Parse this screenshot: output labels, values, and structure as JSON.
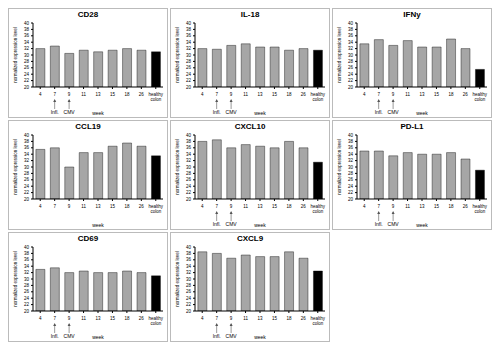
{
  "chart_data": [
    {
      "type": "bar",
      "title": "CD28",
      "categories": [
        "4",
        "7",
        "9",
        "11",
        "13",
        "15",
        "18",
        "26",
        "healthy colon"
      ],
      "values": [
        32,
        32.8,
        30.5,
        31.5,
        31,
        31.5,
        32,
        31.5,
        31
      ],
      "colors": [
        "#a6a6a6",
        "#a6a6a6",
        "#a6a6a6",
        "#a6a6a6",
        "#a6a6a6",
        "#a6a6a6",
        "#a6a6a6",
        "#a6a6a6",
        "#000000"
      ],
      "ylim": [
        20,
        40
      ],
      "yticks": [
        20,
        22,
        24,
        26,
        28,
        30,
        32,
        34,
        36,
        38,
        40
      ],
      "x_label": "week",
      "y_label": "normalized expression level",
      "annotations": [
        {
          "category": "7",
          "text": "Infl."
        },
        {
          "category": "9",
          "text": "CMV"
        }
      ]
    },
    {
      "type": "bar",
      "title": "IL-18",
      "categories": [
        "4",
        "7",
        "9",
        "11",
        "13",
        "15",
        "18",
        "26",
        "healthy colon"
      ],
      "values": [
        32,
        31.8,
        33,
        33.5,
        32.5,
        32.5,
        31.5,
        32,
        31.5
      ],
      "colors": [
        "#a6a6a6",
        "#a6a6a6",
        "#a6a6a6",
        "#a6a6a6",
        "#a6a6a6",
        "#a6a6a6",
        "#a6a6a6",
        "#a6a6a6",
        "#000000"
      ],
      "ylim": [
        20,
        40
      ],
      "yticks": [
        20,
        22,
        24,
        26,
        28,
        30,
        32,
        34,
        36,
        38,
        40
      ],
      "x_label": "week",
      "y_label": "normalized expression level",
      "annotations": [
        {
          "category": "7",
          "text": "Infl."
        },
        {
          "category": "9",
          "text": "CMV"
        }
      ]
    },
    {
      "type": "bar",
      "title": "IFNy",
      "categories": [
        "4",
        "7",
        "9",
        "11",
        "13",
        "15",
        "18",
        "26",
        "healthy colon"
      ],
      "values": [
        33.5,
        34.8,
        33,
        34.5,
        32.5,
        32.5,
        35,
        32,
        25.5
      ],
      "colors": [
        "#a6a6a6",
        "#a6a6a6",
        "#a6a6a6",
        "#a6a6a6",
        "#a6a6a6",
        "#a6a6a6",
        "#a6a6a6",
        "#a6a6a6",
        "#000000"
      ],
      "ylim": [
        20,
        40
      ],
      "yticks": [
        20,
        22,
        24,
        26,
        28,
        30,
        32,
        34,
        36,
        38,
        40
      ],
      "x_label": "week",
      "y_label": "normalized expression level",
      "annotations": [
        {
          "category": "7",
          "text": "Infl."
        },
        {
          "category": "9",
          "text": "CMV"
        }
      ]
    },
    {
      "type": "bar",
      "title": "CCL19",
      "categories": [
        "4",
        "7",
        "9",
        "11",
        "13",
        "15",
        "18",
        "26",
        "healthy colon"
      ],
      "values": [
        35.5,
        36,
        30,
        34.5,
        34.5,
        36.5,
        37.5,
        36.5,
        33.5
      ],
      "colors": [
        "#a6a6a6",
        "#a6a6a6",
        "#a6a6a6",
        "#a6a6a6",
        "#a6a6a6",
        "#a6a6a6",
        "#a6a6a6",
        "#a6a6a6",
        "#000000"
      ],
      "ylim": [
        20,
        40
      ],
      "yticks": [
        20,
        22,
        24,
        26,
        28,
        30,
        32,
        34,
        36,
        38,
        40
      ],
      "x_label": "week",
      "y_label": "normalized expression level"
    },
    {
      "type": "bar",
      "title": "CXCL10",
      "categories": [
        "4",
        "7",
        "9",
        "11",
        "13",
        "15",
        "18",
        "26",
        "healthy colon"
      ],
      "values": [
        38,
        38.5,
        36,
        37,
        36.5,
        36,
        38,
        36,
        31.5
      ],
      "colors": [
        "#a6a6a6",
        "#a6a6a6",
        "#a6a6a6",
        "#a6a6a6",
        "#a6a6a6",
        "#a6a6a6",
        "#a6a6a6",
        "#a6a6a6",
        "#000000"
      ],
      "ylim": [
        20,
        40
      ],
      "yticks": [
        20,
        22,
        24,
        26,
        28,
        30,
        32,
        34,
        36,
        38,
        40
      ],
      "x_label": "week",
      "y_label": "normalized expression level",
      "annotations": [
        {
          "category": "7",
          "text": "Infl."
        },
        {
          "category": "9",
          "text": "CMV"
        }
      ]
    },
    {
      "type": "bar",
      "title": "PD-L1",
      "categories": [
        "4",
        "7",
        "9",
        "11",
        "13",
        "15",
        "18",
        "26",
        "healthy colon"
      ],
      "values": [
        35,
        35,
        33.5,
        34.5,
        34,
        34,
        34.5,
        32.5,
        29
      ],
      "colors": [
        "#a6a6a6",
        "#a6a6a6",
        "#a6a6a6",
        "#a6a6a6",
        "#a6a6a6",
        "#a6a6a6",
        "#a6a6a6",
        "#a6a6a6",
        "#000000"
      ],
      "ylim": [
        20,
        40
      ],
      "yticks": [
        20,
        22,
        24,
        26,
        28,
        30,
        32,
        34,
        36,
        38,
        40
      ],
      "x_label": "week",
      "y_label": "normalized expression level",
      "annotations": [
        {
          "category": "7",
          "text": "Infl."
        },
        {
          "category": "9",
          "text": "CMV"
        }
      ]
    },
    {
      "type": "bar",
      "title": "CD69",
      "categories": [
        "4",
        "7",
        "9",
        "11",
        "13",
        "15",
        "18",
        "26",
        "healthy colon"
      ],
      "values": [
        33,
        33.5,
        32,
        32.5,
        32,
        32,
        32.5,
        32,
        31
      ],
      "colors": [
        "#a6a6a6",
        "#a6a6a6",
        "#a6a6a6",
        "#a6a6a6",
        "#a6a6a6",
        "#a6a6a6",
        "#a6a6a6",
        "#a6a6a6",
        "#000000"
      ],
      "ylim": [
        20,
        40
      ],
      "yticks": [
        20,
        22,
        24,
        26,
        28,
        30,
        32,
        34,
        36,
        38,
        40
      ],
      "x_label": "week",
      "y_label": "normalized expression level",
      "annotations": [
        {
          "category": "7",
          "text": "Infl."
        },
        {
          "category": "9",
          "text": "CMV"
        }
      ]
    },
    {
      "type": "bar",
      "title": "CXCL9",
      "categories": [
        "4",
        "7",
        "9",
        "11",
        "13",
        "15",
        "18",
        "26",
        "healthy colon"
      ],
      "values": [
        38.5,
        38,
        36.5,
        37.5,
        37,
        37,
        38.5,
        36.5,
        32.5
      ],
      "colors": [
        "#a6a6a6",
        "#a6a6a6",
        "#a6a6a6",
        "#a6a6a6",
        "#a6a6a6",
        "#a6a6a6",
        "#a6a6a6",
        "#a6a6a6",
        "#000000"
      ],
      "ylim": [
        20,
        40
      ],
      "yticks": [
        20,
        22,
        24,
        26,
        28,
        30,
        32,
        34,
        36,
        38,
        40
      ],
      "x_label": "week",
      "y_label": "normalized expression level",
      "annotations": [
        {
          "category": "7",
          "text": "Infl."
        },
        {
          "category": "9",
          "text": "CMV"
        }
      ]
    }
  ]
}
